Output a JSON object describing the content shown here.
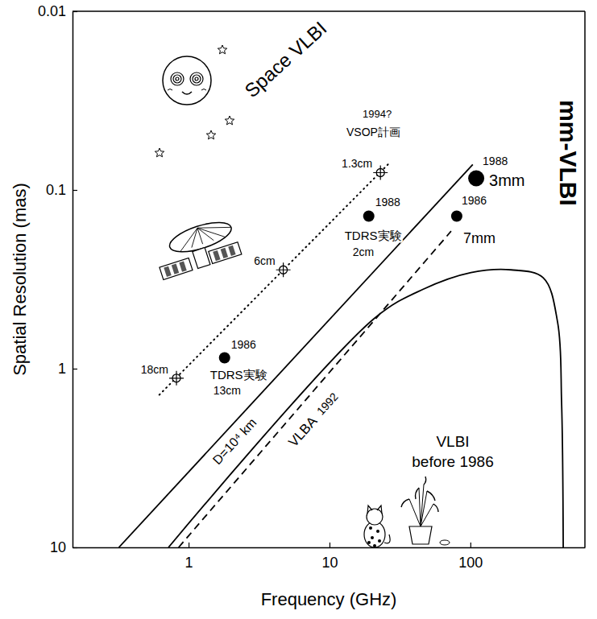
{
  "chart_data": {
    "type": "line",
    "x_label": "Frequency (GHz)",
    "y_label": "Spatial Resolution (mas)",
    "log": true,
    "grid": false,
    "xlim": [
      0.15,
      650
    ],
    "ylim": [
      10,
      0.01
    ],
    "xticks": [
      1,
      10,
      100
    ],
    "yticks": [
      0.01,
      0.1,
      1,
      10
    ],
    "series": [
      {
        "name": "D=10⁴ km",
        "type": "line",
        "line_style": "solid",
        "color": "#000000",
        "x": [
          0.32,
          104
        ],
        "values": [
          10,
          0.072
        ]
      },
      {
        "type": "line",
        "line_style": "dotted",
        "color": "#000000",
        "x": [
          0.62,
          26
        ],
        "values": [
          1.4,
          0.072
        ]
      },
      {
        "type": "line",
        "line_style": "solid",
        "color": "#000000",
        "x": [
          0.72,
          21,
          46,
          101,
          195,
          329,
          416,
          444,
          456
        ],
        "values": [
          10,
          0.52,
          0.36,
          0.29,
          0.28,
          0.31,
          0.55,
          1.55,
          10
        ]
      },
      {
        "type": "line",
        "line_style": "dashed",
        "color": "#000000",
        "x": [
          0.85,
          73
        ],
        "values": [
          10,
          0.17
        ]
      },
      {
        "type": "scatter",
        "marker": "crossed-circle",
        "color": "#000000",
        "x": [
          0.82,
          4.7,
          23
        ],
        "values": [
          1.13,
          0.28,
          0.08
        ],
        "labels": [
          "18cm",
          "6cm",
          "1.3cm"
        ]
      },
      {
        "type": "scatter",
        "marker": "circle",
        "color": "#000000",
        "x": [
          1.8,
          19,
          80,
          110
        ],
        "values": [
          0.87,
          0.14,
          0.14,
          0.086
        ],
        "labels": [
          [
            "1986",
            "TDRS実験",
            "13cm"
          ],
          [
            "1988",
            "TDRS実験",
            "2cm"
          ],
          [
            "1986",
            "7mm"
          ],
          [
            "1988",
            "3mm"
          ]
        ]
      }
    ],
    "annotations": [
      "Space VLBI",
      "1994?",
      "VSOP計画",
      "mm-VLBI",
      "VLBA",
      "1992",
      "VLBI",
      "before 1986"
    ]
  }
}
